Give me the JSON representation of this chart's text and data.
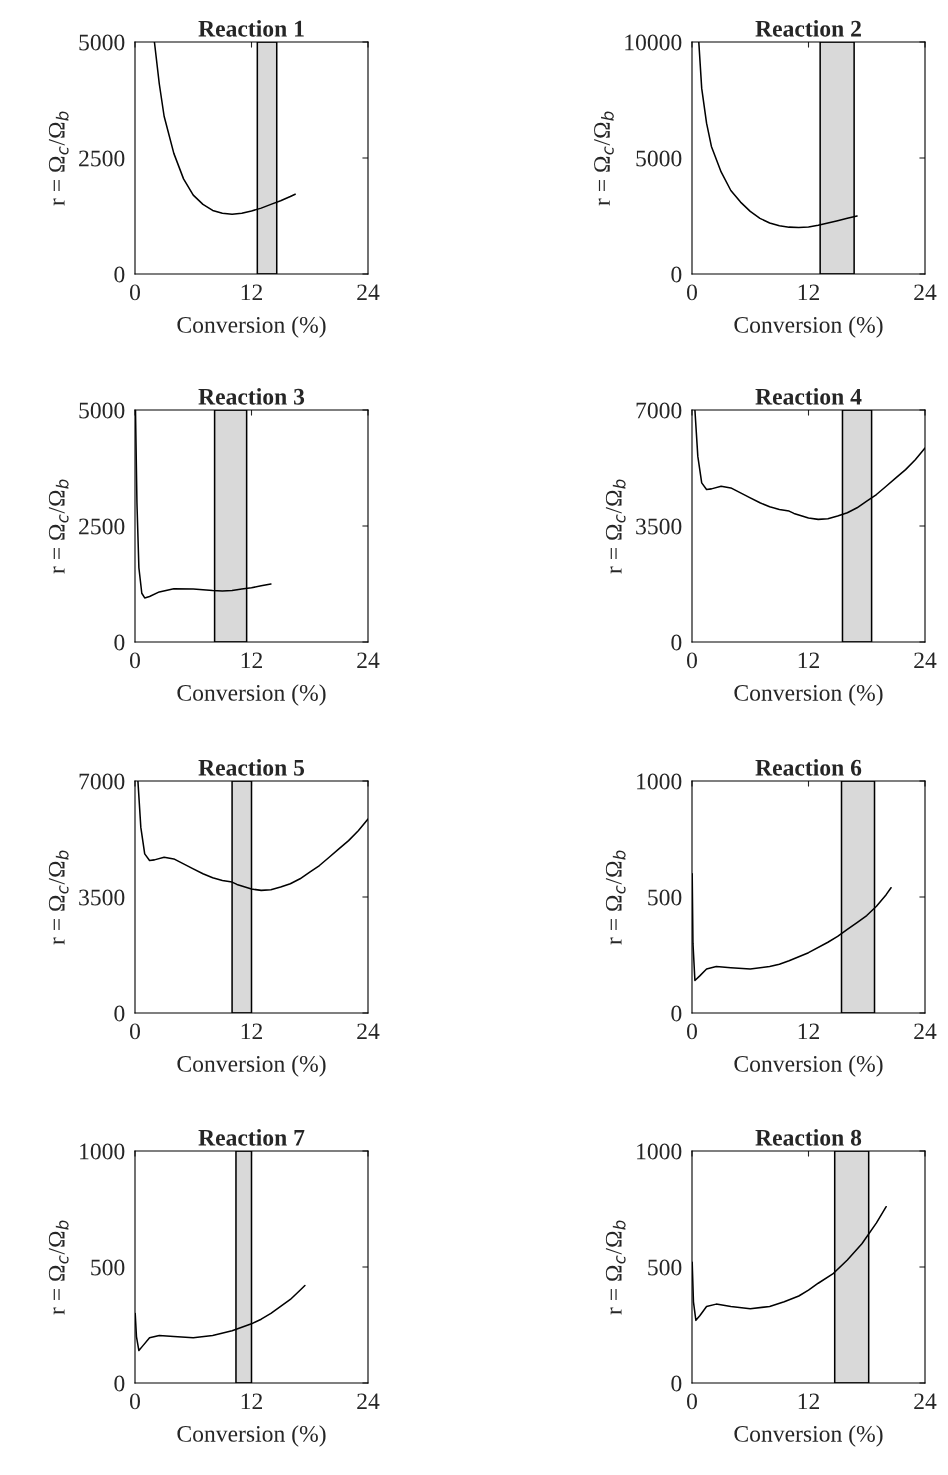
{
  "chart_data": [
    {
      "type": "line",
      "title": "Reaction 1",
      "xlabel": "Conversion (%)",
      "ylabel": "r = Ω$_{c}$/Ω$_{b}$",
      "xlim": [
        0,
        24
      ],
      "xticks": [
        0,
        12,
        24
      ],
      "ylim": [
        0,
        5000
      ],
      "yticks": [
        0,
        2500,
        5000
      ],
      "grid": false,
      "series": [
        {
          "color": "#000000",
          "x": [
            2.0,
            2.5,
            3,
            4,
            5,
            6,
            7,
            8,
            9,
            10,
            11,
            12,
            13,
            14,
            15,
            16,
            16.5
          ],
          "values": [
            5000,
            4100,
            3400,
            2600,
            2050,
            1700,
            1500,
            1370,
            1310,
            1290,
            1310,
            1360,
            1420,
            1500,
            1580,
            1670,
            1720
          ]
        }
      ],
      "bands": [
        {
          "axis": "x",
          "from": 12.6,
          "to": 14.6,
          "color": "#d9d9d9"
        }
      ]
    },
    {
      "type": "line",
      "title": "Reaction 2",
      "xlabel": "Conversion (%)",
      "ylabel": "r = Ω$_{c}$/Ω$_{b}$",
      "xlim": [
        0,
        24
      ],
      "xticks": [
        0,
        12,
        24
      ],
      "ylim": [
        0,
        10000
      ],
      "yticks": [
        0,
        5000,
        10000
      ],
      "grid": false,
      "series": [
        {
          "color": "#000000",
          "x": [
            0.7,
            1,
            1.5,
            2,
            3,
            4,
            5,
            6,
            7,
            8,
            9,
            10,
            11,
            12,
            13,
            14,
            15,
            16,
            17
          ],
          "values": [
            10000,
            8000,
            6500,
            5500,
            4400,
            3600,
            3100,
            2700,
            2400,
            2200,
            2080,
            2020,
            2000,
            2030,
            2100,
            2200,
            2300,
            2400,
            2500
          ]
        }
      ],
      "bands": [
        {
          "axis": "x",
          "from": 13.2,
          "to": 16.7,
          "color": "#d9d9d9"
        }
      ]
    },
    {
      "type": "line",
      "title": "Reaction 3",
      "xlabel": "Conversion (%)",
      "ylabel": "r = Ω$_{c}$/Ω$_{b}$",
      "xlim": [
        0,
        24
      ],
      "xticks": [
        0,
        12,
        24
      ],
      "ylim": [
        0,
        5000
      ],
      "yticks": [
        0,
        2500,
        5000
      ],
      "grid": false,
      "series": [
        {
          "color": "#000000",
          "x": [
            0.05,
            0.2,
            0.4,
            0.7,
            1,
            1.5,
            2.5,
            4,
            6,
            8,
            9,
            10,
            11,
            12,
            13,
            14
          ],
          "values": [
            5000,
            3000,
            1600,
            1050,
            950,
            980,
            1080,
            1150,
            1140,
            1110,
            1100,
            1110,
            1140,
            1170,
            1210,
            1250
          ]
        }
      ],
      "bands": [
        {
          "axis": "x",
          "from": 8.2,
          "to": 11.5,
          "color": "#d9d9d9"
        }
      ]
    },
    {
      "type": "line",
      "title": "Reaction 4",
      "xlabel": "Conversion (%)",
      "ylabel": "r = Ω$_{c}$/Ω$_{b}$",
      "xlim": [
        0,
        24
      ],
      "xticks": [
        0,
        12,
        24
      ],
      "ylim": [
        0,
        7000
      ],
      "yticks": [
        0,
        3500,
        7000
      ],
      "grid": false,
      "series": [
        {
          "color": "#000000",
          "x": [
            0.3,
            0.6,
            1,
            1.5,
            2,
            3,
            4,
            5,
            6,
            7,
            8,
            9,
            10,
            10.5,
            12,
            13,
            14,
            15,
            16,
            17,
            18,
            19,
            20,
            21,
            22,
            23,
            24
          ],
          "values": [
            7000,
            5600,
            4800,
            4600,
            4620,
            4700,
            4650,
            4500,
            4350,
            4200,
            4080,
            4000,
            3950,
            3880,
            3740,
            3700,
            3720,
            3800,
            3900,
            4050,
            4250,
            4450,
            4700,
            4950,
            5200,
            5500,
            5850
          ]
        }
      ],
      "bands": [
        {
          "axis": "x",
          "from": 15.5,
          "to": 18.5,
          "color": "#d9d9d9"
        }
      ]
    },
    {
      "type": "line",
      "title": "Reaction 5",
      "xlabel": "Conversion (%)",
      "ylabel": "r = Ω$_{c}$/Ω$_{b}$",
      "xlim": [
        0,
        24
      ],
      "xticks": [
        0,
        12,
        24
      ],
      "ylim": [
        0,
        7000
      ],
      "yticks": [
        0,
        3500,
        7000
      ],
      "grid": false,
      "series": [
        {
          "color": "#000000",
          "x": [
            0.3,
            0.6,
            1,
            1.5,
            2,
            3,
            4,
            5,
            6,
            7,
            8,
            9,
            10,
            10.5,
            12,
            13,
            14,
            15,
            16,
            17,
            18,
            19,
            20,
            21,
            22,
            23,
            24
          ],
          "values": [
            7000,
            5600,
            4800,
            4600,
            4620,
            4700,
            4650,
            4500,
            4350,
            4200,
            4080,
            4000,
            3950,
            3880,
            3740,
            3700,
            3720,
            3800,
            3900,
            4050,
            4250,
            4450,
            4700,
            4950,
            5200,
            5500,
            5850
          ]
        }
      ],
      "bands": [
        {
          "axis": "x",
          "from": 10.0,
          "to": 12.0,
          "color": "#d9d9d9"
        }
      ]
    },
    {
      "type": "line",
      "title": "Reaction 6",
      "xlabel": "Conversion (%)",
      "ylabel": "r = Ω$_{c}$/Ω$_{b}$",
      "xlim": [
        0,
        24
      ],
      "xticks": [
        0,
        12,
        24
      ],
      "ylim": [
        0,
        1000
      ],
      "yticks": [
        0,
        500,
        1000
      ],
      "grid": false,
      "series": [
        {
          "color": "#000000",
          "x": [
            0.02,
            0.1,
            0.3,
            0.8,
            1.5,
            2.5,
            4,
            6,
            8,
            9,
            10,
            12,
            14,
            15,
            16,
            17,
            18,
            19,
            20,
            20.5
          ],
          "values": [
            600,
            300,
            140,
            160,
            190,
            200,
            195,
            190,
            200,
            210,
            225,
            260,
            305,
            330,
            360,
            390,
            420,
            460,
            510,
            540
          ]
        }
      ],
      "bands": [
        {
          "axis": "x",
          "from": 15.4,
          "to": 18.8,
          "color": "#d9d9d9"
        }
      ]
    },
    {
      "type": "line",
      "title": "Reaction 7",
      "xlabel": "Conversion (%)",
      "ylabel": "r = Ω$_{c}$/Ω$_{b}$",
      "xlim": [
        0,
        24
      ],
      "xticks": [
        0,
        12,
        24
      ],
      "ylim": [
        0,
        1000
      ],
      "yticks": [
        0,
        500,
        1000
      ],
      "grid": false,
      "series": [
        {
          "color": "#000000",
          "x": [
            0.02,
            0.15,
            0.4,
            0.8,
            1.5,
            2.5,
            4,
            6,
            8,
            10,
            12,
            13,
            14,
            15,
            16,
            17,
            17.5
          ],
          "values": [
            300,
            200,
            140,
            160,
            195,
            205,
            200,
            195,
            205,
            225,
            255,
            275,
            300,
            330,
            360,
            400,
            420
          ]
        }
      ],
      "bands": [
        {
          "axis": "x",
          "from": 10.4,
          "to": 12.0,
          "color": "#d9d9d9"
        }
      ]
    },
    {
      "type": "line",
      "title": "Reaction 8",
      "xlabel": "Conversion (%)",
      "ylabel": "r = Ω$_{c}$/Ω$_{b}$",
      "xlim": [
        0,
        24
      ],
      "xticks": [
        0,
        12,
        24
      ],
      "ylim": [
        0,
        1000
      ],
      "yticks": [
        0,
        500,
        1000
      ],
      "grid": false,
      "series": [
        {
          "color": "#000000",
          "x": [
            0.02,
            0.15,
            0.4,
            0.8,
            1.5,
            2.5,
            4,
            6,
            8,
            9.5,
            11,
            12,
            13,
            14.5,
            16,
            17.5,
            19,
            20
          ],
          "values": [
            520,
            350,
            270,
            290,
            330,
            340,
            330,
            320,
            330,
            350,
            375,
            400,
            430,
            470,
            530,
            600,
            690,
            760
          ]
        }
      ],
      "bands": [
        {
          "axis": "x",
          "from": 14.7,
          "to": 18.2,
          "color": "#d9d9d9"
        }
      ]
    }
  ]
}
